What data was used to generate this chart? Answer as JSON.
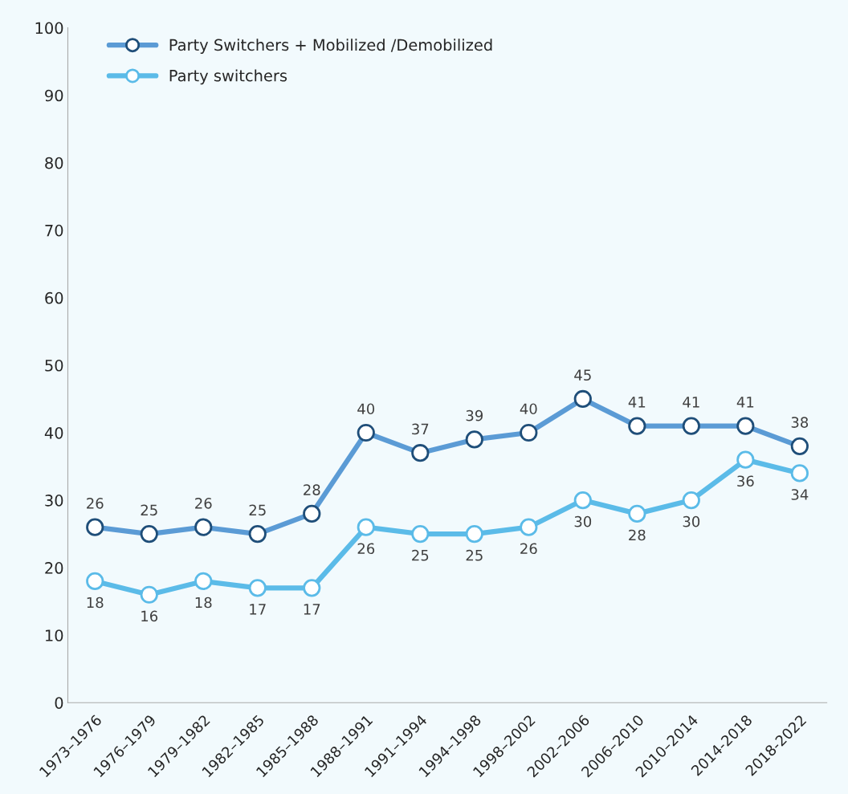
{
  "chart_data": {
    "type": "line",
    "categories": [
      "1973–1976",
      "1976–1979",
      "1979–1982",
      "1982–1985",
      "1985–1988",
      "1988–1991",
      "1991–1994",
      "1994–1998",
      "1998–2002",
      "2002–2006",
      "2006–2010",
      "2010–2014",
      "2014-2018",
      "2018-2022"
    ],
    "series": [
      {
        "name": "Party Switchers + Mobilized /Demobilized",
        "color": "#5b9bd5",
        "values": [
          26,
          25,
          26,
          25,
          28,
          40,
          37,
          39,
          40,
          45,
          41,
          41,
          41,
          38
        ]
      },
      {
        "name": "Party switchers",
        "color": "#5bbbe8",
        "values": [
          18,
          16,
          18,
          17,
          17,
          26,
          25,
          25,
          26,
          30,
          28,
          30,
          36,
          34
        ]
      }
    ],
    "ylim": [
      0,
      100
    ],
    "yticks": [
      0,
      10,
      20,
      30,
      40,
      50,
      60,
      70,
      80,
      90,
      100
    ],
    "grid": false,
    "legend": "top left",
    "marker": "circle",
    "line_style": "solid",
    "data_labels": true
  }
}
